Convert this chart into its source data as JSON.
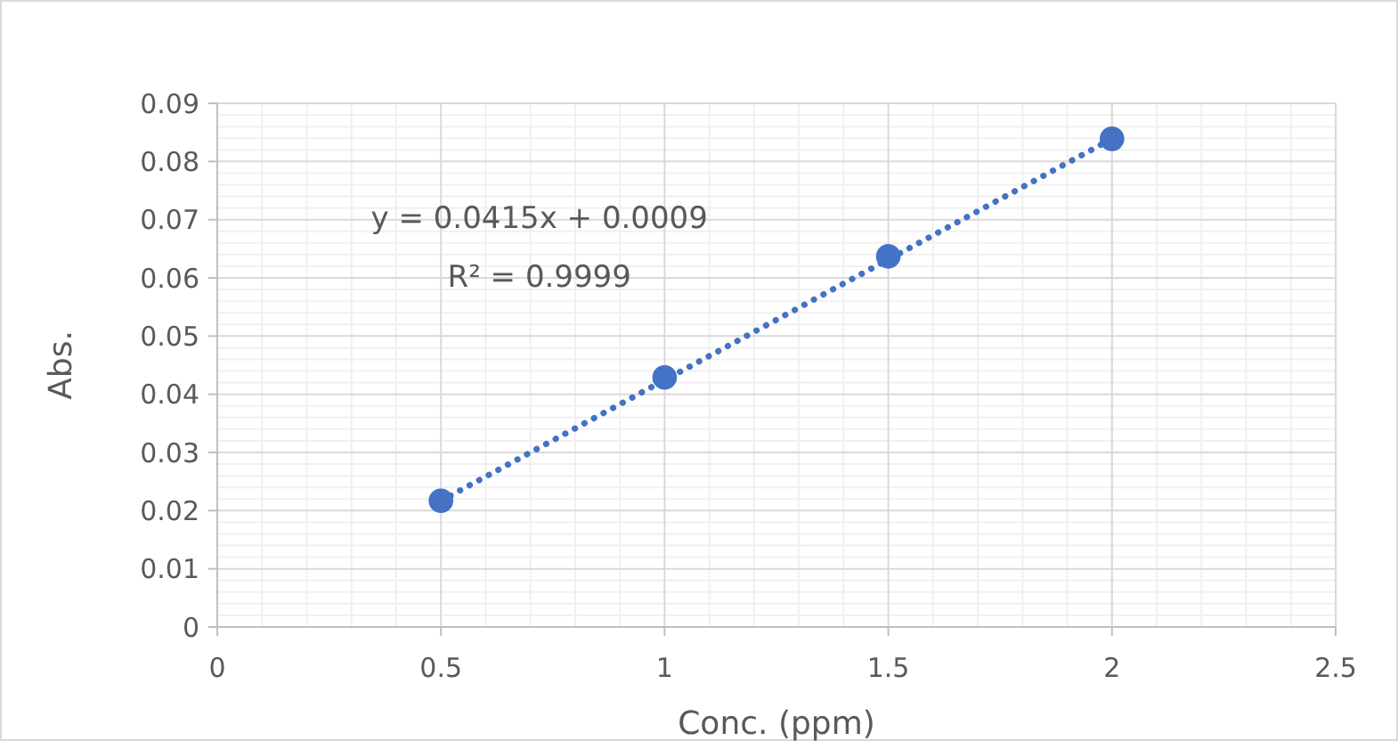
{
  "chart_data": {
    "type": "scatter",
    "xlabel": "Conc. (ppm)",
    "ylabel": "Abs.",
    "xlim": [
      0,
      2.5
    ],
    "xticks": [
      0,
      0.5,
      1,
      1.5,
      2,
      2.5
    ],
    "ylim": [
      0,
      0.09
    ],
    "yticks": [
      0,
      0.01,
      0.02,
      0.03,
      0.04,
      0.05,
      0.06,
      0.07,
      0.08,
      0.09
    ],
    "grid": true,
    "annotations": [
      "y = 0.0415x + 0.0009",
      "R² = 0.9999"
    ],
    "series": [
      {
        "color": "#4472c4",
        "marker": "circle",
        "x": [
          0.5,
          1,
          1.5,
          2
        ],
        "values": [
          0.0217,
          0.0429,
          0.0637,
          0.0839
        ]
      },
      {
        "type": "line",
        "color": "#4472c4",
        "line_style": "dotted",
        "marker": "none",
        "x": [
          0.5,
          2
        ],
        "values": [
          0.0217,
          0.0839
        ]
      }
    ]
  }
}
